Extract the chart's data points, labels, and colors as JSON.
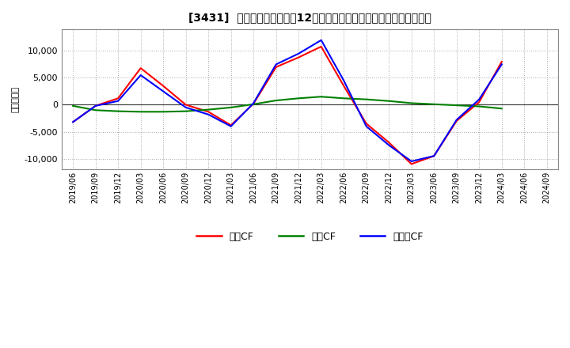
{
  "title": "[3431]  キャッシュフローの12か月移動合計の対前年同期増減額の推移",
  "ylabel": "（百万円）",
  "background_color": "#ffffff",
  "plot_bg_color": "#ffffff",
  "grid_color": "#aaaaaa",
  "ylim": [
    -12000,
    14000
  ],
  "yticks": [
    -10000,
    -5000,
    0,
    5000,
    10000
  ],
  "x_labels": [
    "2019/06",
    "2019/09",
    "2019/12",
    "2020/03",
    "2020/06",
    "2020/09",
    "2020/12",
    "2021/03",
    "2021/06",
    "2021/09",
    "2021/12",
    "2022/03",
    "2022/06",
    "2022/09",
    "2022/12",
    "2023/03",
    "2023/06",
    "2023/09",
    "2023/12",
    "2024/03",
    "2024/06",
    "2024/09"
  ],
  "series": [
    {
      "name": "営業CF",
      "color": "#ff0000",
      "data": [
        -3200,
        -200,
        1200,
        6800,
        3500,
        0,
        -1300,
        -3800,
        200,
        7000,
        8800,
        10800,
        3500,
        -3500,
        -7000,
        -11000,
        -9500,
        -3000,
        500,
        8000,
        null,
        null
      ]
    },
    {
      "name": "投資CF",
      "color": "#008000",
      "data": [
        -200,
        -1000,
        -1200,
        -1300,
        -1300,
        -1200,
        -900,
        -500,
        100,
        800,
        1200,
        1500,
        1200,
        1000,
        700,
        300,
        100,
        -100,
        -300,
        -700,
        null,
        null
      ]
    },
    {
      "name": "フリーCF",
      "color": "#0000ff",
      "data": [
        -3200,
        -200,
        700,
        5500,
        2500,
        -500,
        -1800,
        -4000,
        300,
        7500,
        9500,
        12000,
        4500,
        -4000,
        -7500,
        -10500,
        -9500,
        -2800,
        1000,
        7500,
        null,
        null
      ]
    }
  ]
}
